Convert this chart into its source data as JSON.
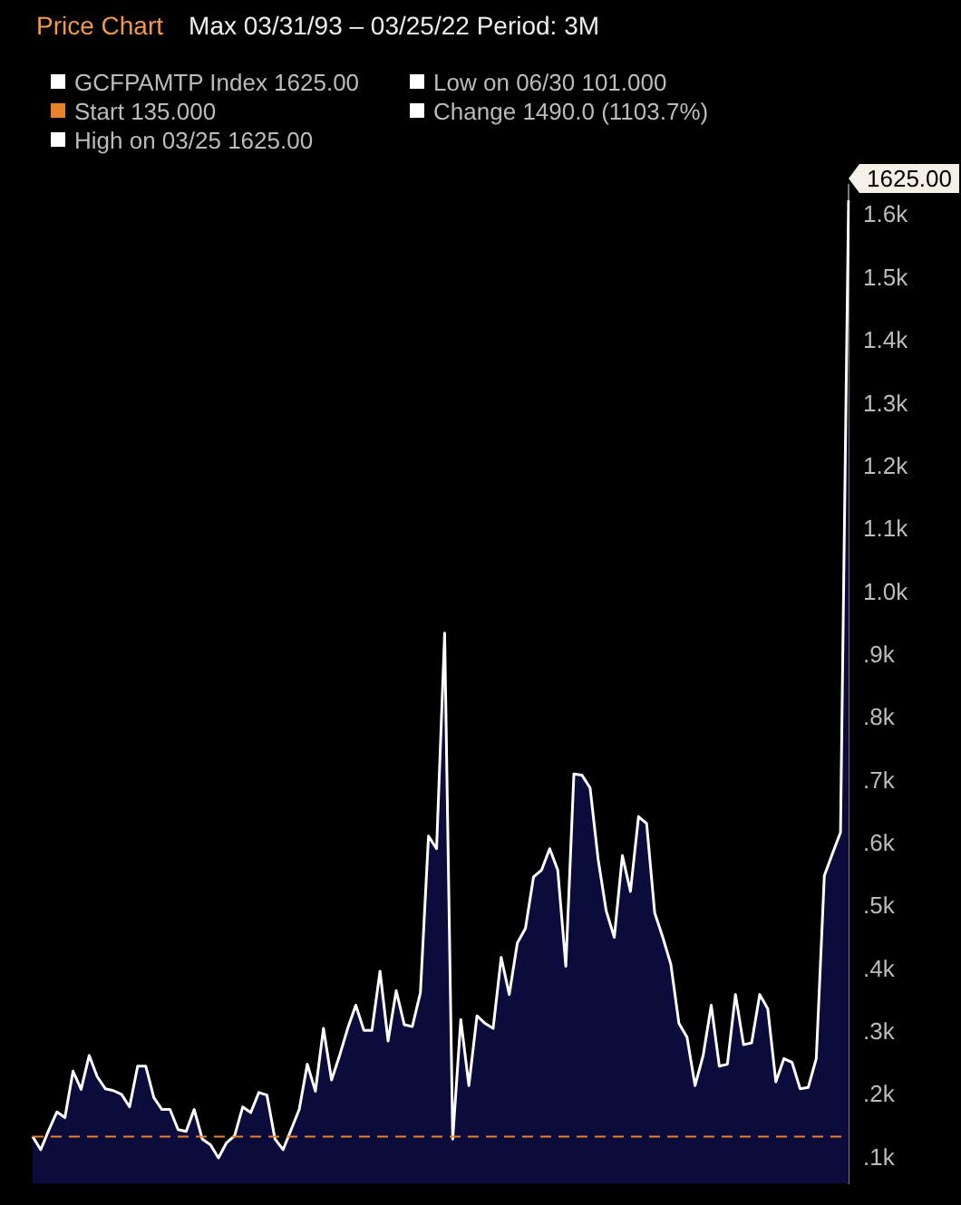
{
  "chart_data": {
    "type": "area",
    "title": "Price Chart",
    "subtitle": "Max   03/31/93 – 03/25/22   Period: 3M",
    "categories": [
      null,
      null,
      null,
      null,
      null,
      null,
      null,
      null,
      null,
      null,
      null,
      null,
      null,
      null,
      null,
      null,
      null,
      null,
      null,
      null,
      null,
      null,
      null,
      null,
      null,
      null,
      null,
      null,
      null,
      null,
      null,
      null,
      null,
      null,
      null,
      null,
      null,
      null,
      null,
      null,
      null,
      null,
      null,
      null,
      null,
      null,
      null,
      null,
      null,
      null,
      null,
      null,
      null,
      null,
      null,
      null,
      null,
      null,
      null,
      null,
      null,
      null,
      null,
      null,
      null,
      null,
      null,
      null,
      null,
      null,
      null,
      null,
      null,
      null,
      null,
      null,
      null,
      null,
      null,
      null,
      null,
      null,
      null,
      null,
      null,
      null,
      null,
      null,
      null,
      null,
      null,
      null,
      null,
      null,
      null,
      null,
      null,
      null,
      null,
      null,
      null,
      null
    ],
    "series": [
      {
        "name": "GCFPAMTP Index 1625.00",
        "color": "#ffffff",
        "values": [
          135,
          114,
          145,
          174,
          165,
          239,
          210,
          264,
          230,
          211,
          208,
          202,
          182,
          247,
          247,
          197,
          178,
          178,
          146,
          143,
          178,
          131,
          122,
          101,
          125,
          136,
          182,
          173,
          205,
          201,
          131,
          114,
          146,
          178,
          250,
          207,
          307,
          225,
          264,
          307,
          344,
          304,
          304,
          398,
          287,
          367,
          313,
          310,
          364,
          613,
          593,
          936,
          131,
          321,
          216,
          327,
          315,
          307,
          420,
          361,
          443,
          466,
          548,
          559,
          593,
          559,
          406,
          712,
          710,
          690,
          576,
          494,
          452,
          582,
          525,
          644,
          633,
          491,
          452,
          409,
          315,
          293,
          216,
          264,
          344,
          247,
          250,
          361,
          281,
          284,
          361,
          338,
          222,
          259,
          253,
          211,
          213,
          259,
          550,
          585,
          619,
          1625
        ]
      }
    ],
    "ylim": [
      60,
      1650
    ],
    "yticks": [
      {
        "value": 100,
        "label": ".1k"
      },
      {
        "value": 200,
        "label": ".2k"
      },
      {
        "value": 300,
        "label": ".3k"
      },
      {
        "value": 400,
        "label": ".4k"
      },
      {
        "value": 500,
        "label": ".5k"
      },
      {
        "value": 600,
        "label": ".6k"
      },
      {
        "value": 700,
        "label": ".7k"
      },
      {
        "value": 800,
        "label": ".8k"
      },
      {
        "value": 900,
        "label": ".9k"
      },
      {
        "value": 1000,
        "label": "1.0k"
      },
      {
        "value": 1100,
        "label": "1.1k"
      },
      {
        "value": 1200,
        "label": "1.2k"
      },
      {
        "value": 1300,
        "label": "1.3k"
      },
      {
        "value": 1400,
        "label": "1.4k"
      },
      {
        "value": 1500,
        "label": "1.5k"
      },
      {
        "value": 1600,
        "label": "1.6k"
      }
    ],
    "ref_lines": [
      {
        "axis": "y",
        "value": 135,
        "label": "Start 135.000",
        "color": "#e8822a",
        "line_style": "dashed"
      }
    ],
    "annotations": [
      "Low on 06/30 101.000",
      "Change 1490.0 (1103.7%)",
      "High on 03/25 1625.00",
      "1625.00"
    ],
    "legend": "top left",
    "tick_labels": "y",
    "grid": false,
    "marker": "none",
    "line_style": "solid"
  }
}
